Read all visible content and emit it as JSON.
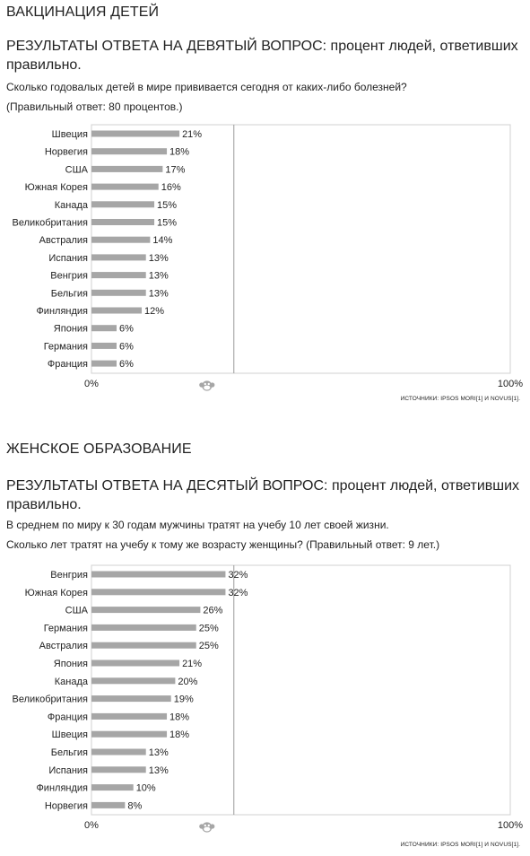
{
  "section1": {
    "title": "ВАКЦИНАЦИЯ ДЕТЕЙ",
    "subtitle": "РЕЗУЛЬТАТЫ ОТВЕТА НА ДЕВЯТЫЙ ВОПРОС: процент людей, ответивших правильно.",
    "question": "Сколько годовалых детей в мире прививается сегодня от каких-либо болезней?",
    "answer": "(Правильный ответ: 80 процентов.)",
    "source": "ИСТОЧНИКИ: IPSOS MORI[1] И NOVUS[1]."
  },
  "section2": {
    "title": "ЖЕНСКОЕ ОБРАЗОВАНИЕ",
    "subtitle": "РЕЗУЛЬТАТЫ ОТВЕТА НА ДЕСЯТЫЙ ВОПРОС: процент людей, ответивших правильно.",
    "question": "В среднем по миру к 30 годам мужчины тратят на учебу 10 лет своей жизни.",
    "answer": "Сколько лет тратят на учебу к тому же возрасту женщины? (Правильный ответ: 9 лет.)",
    "source": "ИСТОЧНИКИ: IPSOS MORI[1] И NOVUS[1]."
  },
  "colors": {
    "bar": "#a6a6a6",
    "frame": "#d0d0d0",
    "marker": "#a6a6a6",
    "text": "#222222"
  },
  "chart_data": [
    {
      "type": "bar",
      "orientation": "horizontal",
      "categories": [
        "Швеция",
        "Норвегия",
        "США",
        "Южная Корея",
        "Канада",
        "Великобритания",
        "Австралия",
        "Испания",
        "Венгрия",
        "Бельгия",
        "Финляндия",
        "Япония",
        "Германия",
        "Франция"
      ],
      "values": [
        21,
        18,
        17,
        16,
        15,
        15,
        14,
        13,
        13,
        13,
        12,
        6,
        6,
        6
      ],
      "value_labels": [
        "21%",
        "18%",
        "17%",
        "16%",
        "15%",
        "15%",
        "14%",
        "13%",
        "13%",
        "13%",
        "12%",
        "6%",
        "6%",
        "6%"
      ],
      "xlim": [
        0,
        100
      ],
      "x_tick_labels": [
        "0%",
        "100%"
      ],
      "reference_value": 34,
      "grid": false
    },
    {
      "type": "bar",
      "orientation": "horizontal",
      "categories": [
        "Венгрия",
        "Южная Корея",
        "США",
        "Германия",
        "Австралия",
        "Япония",
        "Канада",
        "Великобритания",
        "Франция",
        "Швеция",
        "Бельгия",
        "Испания",
        "Финляндия",
        "Норвегия"
      ],
      "values": [
        32,
        32,
        26,
        25,
        25,
        21,
        20,
        19,
        18,
        18,
        13,
        13,
        10,
        8
      ],
      "value_labels": [
        "32%",
        "32%",
        "26%",
        "25%",
        "25%",
        "21%",
        "20%",
        "19%",
        "18%",
        "18%",
        "13%",
        "13%",
        "10%",
        "8%"
      ],
      "xlim": [
        0,
        100
      ],
      "x_tick_labels": [
        "0%",
        "100%"
      ],
      "reference_value": 34,
      "grid": false
    }
  ]
}
